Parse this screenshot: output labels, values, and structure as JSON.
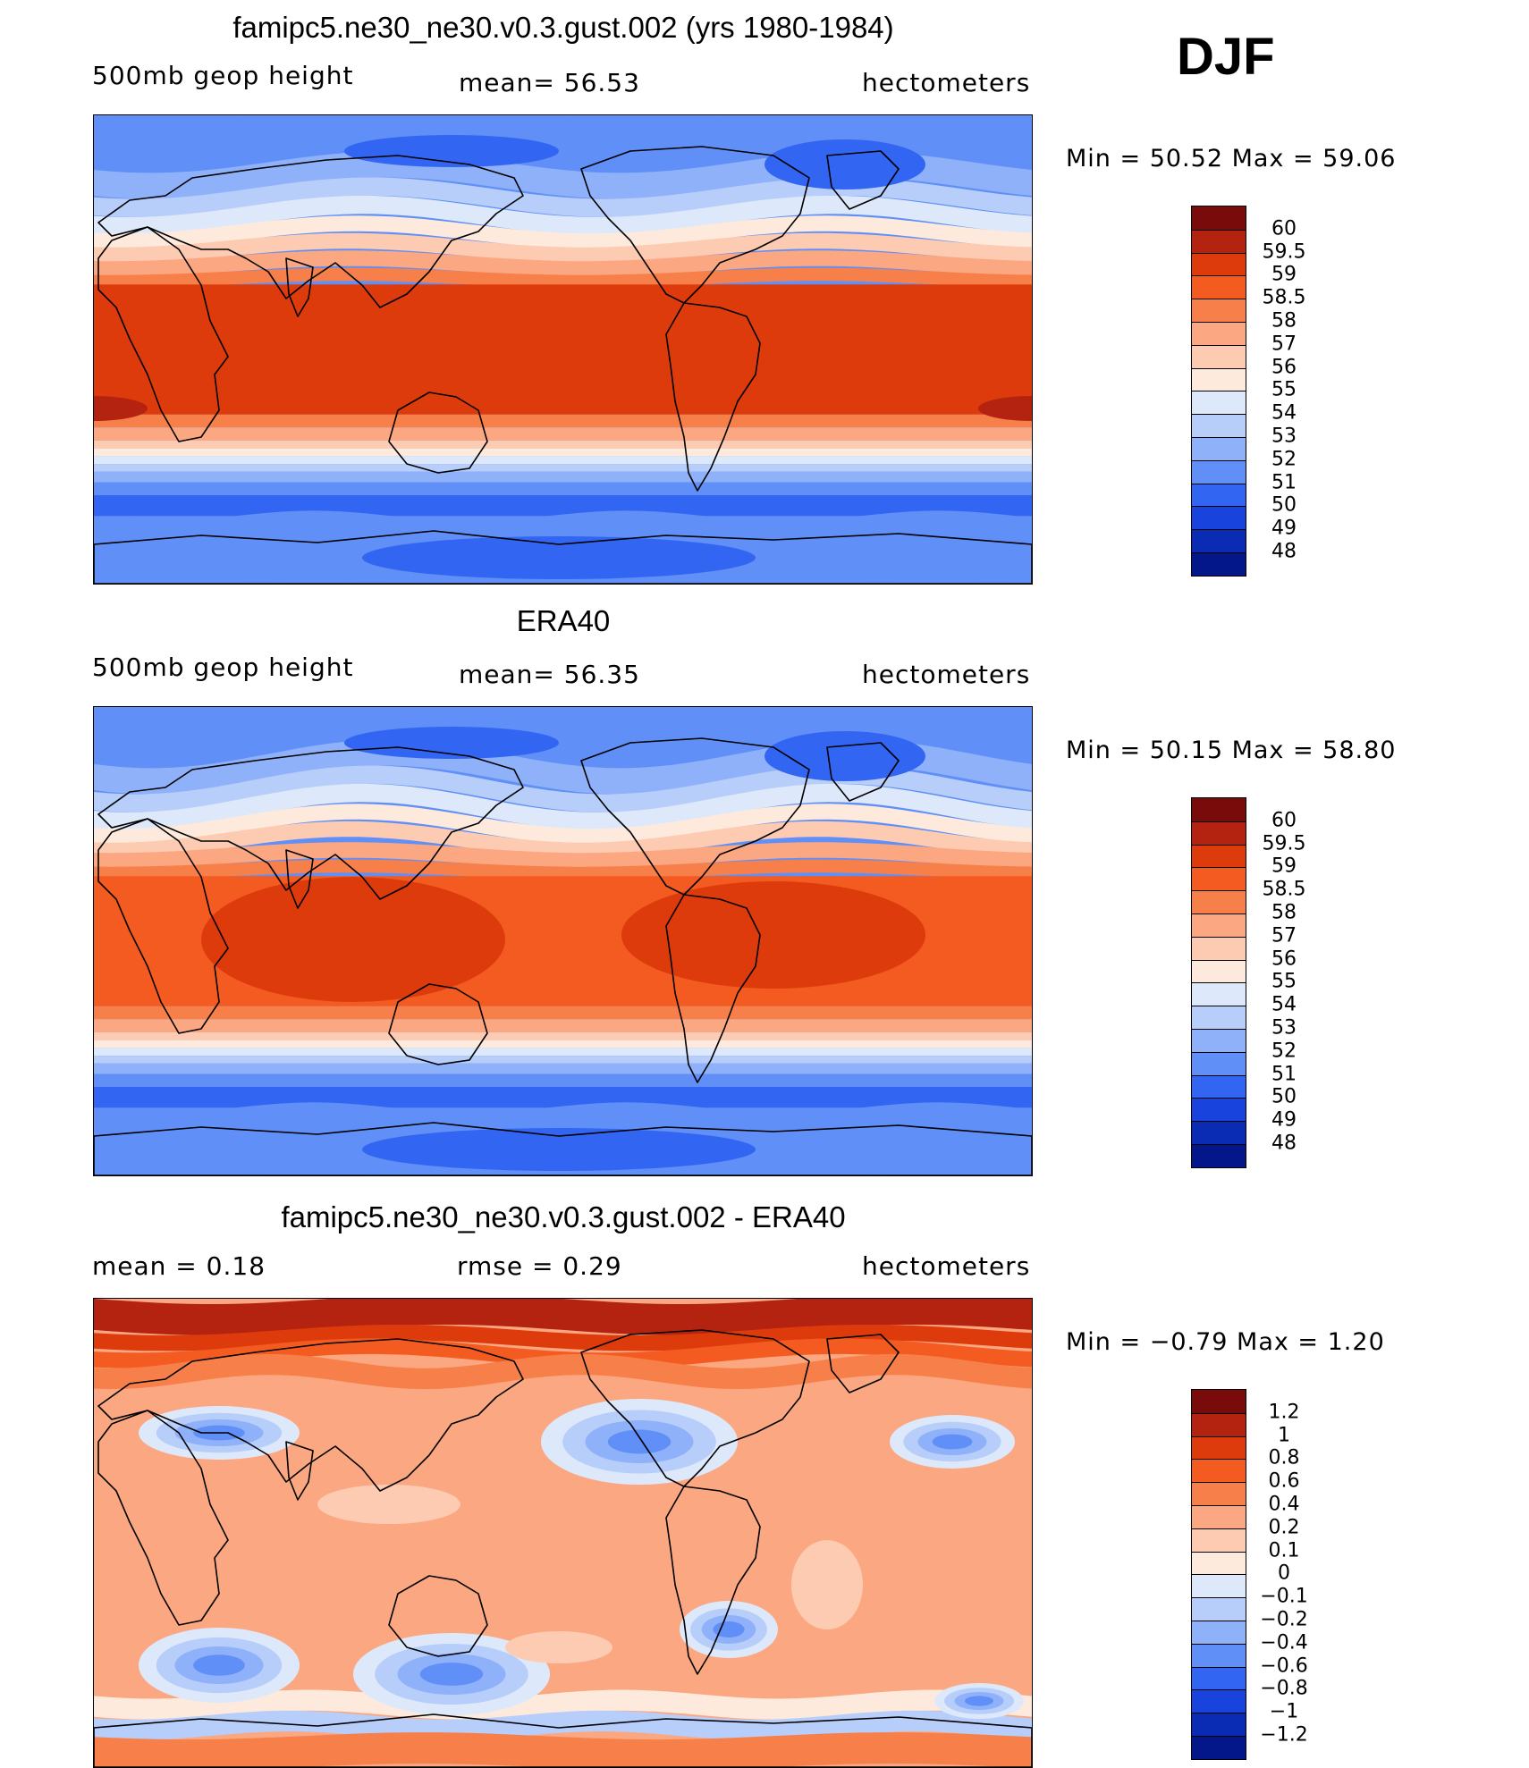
{
  "figure": {
    "season": "DJF"
  },
  "panels": [
    {
      "id": "model",
      "title": "famipc5.ne30_ne30.v0.3.gust.002 (yrs 1980-1984)",
      "left_label": "500mb  geop  height",
      "center_label": "mean=   56.53",
      "right_label": "hectometers",
      "minmax": "Min  =    50.52  Max  =    59.06",
      "colorbar": {
        "colors": [
          "#7a0b0b",
          "#b3230f",
          "#de3b0d",
          "#f45b21",
          "#f7804a",
          "#fba882",
          "#fdcbb2",
          "#feeadd",
          "#dde9fa",
          "#b7cdfa",
          "#8eb1f9",
          "#5f8ff7",
          "#3266f2",
          "#1843dc",
          "#0a2cb4",
          "#03168a"
        ],
        "labels": [
          "60",
          "59.5",
          "59",
          "58.5",
          "58",
          "57",
          "56",
          "55",
          "54",
          "53",
          "52",
          "51",
          "50",
          "49",
          "48"
        ]
      },
      "field": "model"
    },
    {
      "id": "obs",
      "title": "ERA40",
      "left_label": "500mb  geop  height",
      "center_label": "mean=   56.35",
      "right_label": "hectometers",
      "minmax": "Min  =    50.15  Max  =    58.80",
      "colorbar": {
        "colors": [
          "#7a0b0b",
          "#b3230f",
          "#de3b0d",
          "#f45b21",
          "#f7804a",
          "#fba882",
          "#fdcbb2",
          "#feeadd",
          "#dde9fa",
          "#b7cdfa",
          "#8eb1f9",
          "#5f8ff7",
          "#3266f2",
          "#1843dc",
          "#0a2cb4",
          "#03168a"
        ],
        "labels": [
          "60",
          "59.5",
          "59",
          "58.5",
          "58",
          "57",
          "56",
          "55",
          "54",
          "53",
          "52",
          "51",
          "50",
          "49",
          "48"
        ]
      },
      "field": "obs"
    },
    {
      "id": "diff",
      "title": "famipc5.ne30_ne30.v0.3.gust.002 - ERA40",
      "left_label": "mean  =      0.18",
      "center_label": "rmse  =      0.29",
      "right_label": "hectometers",
      "minmax": "Min  =    −0.79  Max  =      1.20",
      "colorbar": {
        "colors": [
          "#7a0b0b",
          "#b3230f",
          "#de3b0d",
          "#f45b21",
          "#f7804a",
          "#fba882",
          "#fdcbb2",
          "#feeadd",
          "#dde9fa",
          "#b7cdfa",
          "#8eb1f9",
          "#5f8ff7",
          "#3266f2",
          "#1843dc",
          "#0a2cb4",
          "#03168a"
        ],
        "labels": [
          "1.2",
          "1",
          "0.8",
          "0.6",
          "0.4",
          "0.2",
          "0.1",
          "0",
          "−0.1",
          "−0.2",
          "−0.4",
          "−0.6",
          "−0.8",
          "−1",
          "−1.2"
        ]
      },
      "field": "diff"
    }
  ]
}
